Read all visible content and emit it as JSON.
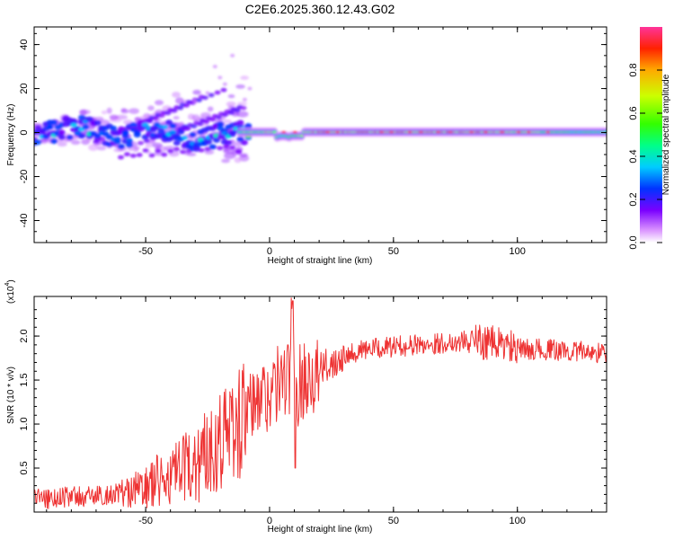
{
  "title": "C2E6.2025.360.12.43.G02",
  "chart_data": [
    {
      "type": "heatmap",
      "name": "spectrogram",
      "xlabel": "Height of straight line (km)",
      "ylabel": "Frequency (Hz)",
      "xlim": [
        -95,
        136
      ],
      "ylim": [
        -50,
        48
      ],
      "xticks": [
        -50,
        0,
        50,
        100
      ],
      "yticks": [
        -40,
        -20,
        0,
        20,
        40
      ],
      "colorbar": {
        "label": "Normalized spectral amplitude",
        "range": [
          0,
          1
        ],
        "ticks": [
          0.0,
          0.2,
          0.4,
          0.6,
          0.8
        ]
      },
      "description_points": [
        {
          "x": -90,
          "y": 0,
          "amp": 0.45
        },
        {
          "x": -75,
          "y": 3,
          "amp": 0.5
        },
        {
          "x": -60,
          "y": -2,
          "amp": 0.45
        },
        {
          "x": -45,
          "y": 2,
          "amp": 0.45
        },
        {
          "x": -30,
          "y": -3,
          "amp": 0.45
        },
        {
          "x": -15,
          "y": 0,
          "amp": 0.55
        },
        {
          "x": 0,
          "y": 1,
          "amp": 0.8
        },
        {
          "x": 5,
          "y": -2,
          "amp": 0.45
        },
        {
          "x": 20,
          "y": 0,
          "amp": 0.9
        },
        {
          "x": 50,
          "y": 0,
          "amp": 0.9
        },
        {
          "x": 90,
          "y": 0,
          "amp": 0.9
        },
        {
          "x": 120,
          "y": 0,
          "amp": 0.55
        }
      ]
    },
    {
      "type": "line",
      "name": "snr",
      "xlabel": "Height of straight line (km)",
      "ylabel": "SNR (10 * v/v)",
      "scale_label": "(x10",
      "scale_exp": "4",
      "xlim": [
        -95,
        136
      ],
      "ylim": [
        0,
        2.45
      ],
      "xticks": [
        -50,
        0,
        50,
        100
      ],
      "yticks": [
        0.5,
        1.0,
        1.5,
        2.0
      ],
      "ytick_labels": [
        "0.5",
        "1.0",
        "1.5",
        "2.0"
      ],
      "series": [
        {
          "name": "SNR",
          "color": "#ee3333",
          "x": [
            -95,
            -90,
            -85,
            -80,
            -75,
            -70,
            -65,
            -60,
            -55,
            -50,
            -45,
            -40,
            -35,
            -30,
            -25,
            -20,
            -15,
            -10,
            -5,
            0,
            5,
            8,
            9,
            10,
            12,
            15,
            20,
            25,
            30,
            40,
            50,
            60,
            70,
            80,
            90,
            95,
            100,
            110,
            120,
            130,
            136
          ],
          "values": [
            0.18,
            0.15,
            0.17,
            0.18,
            0.17,
            0.18,
            0.2,
            0.22,
            0.24,
            0.28,
            0.35,
            0.4,
            0.45,
            0.55,
            0.7,
            0.85,
            0.95,
            1.05,
            1.25,
            1.35,
            1.5,
            1.55,
            2.2,
            1.3,
            1.45,
            1.55,
            1.6,
            1.7,
            1.8,
            1.85,
            1.88,
            1.9,
            1.92,
            1.95,
            1.92,
            1.9,
            1.85,
            1.85,
            1.83,
            1.82,
            1.8
          ]
        }
      ]
    }
  ],
  "colors": {
    "snr_line": "#ee3333"
  }
}
